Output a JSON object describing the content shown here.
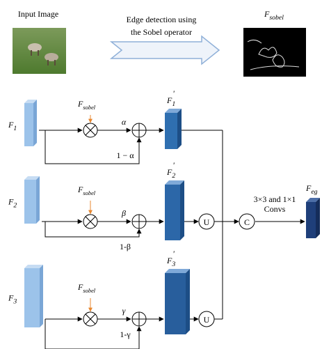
{
  "header": {
    "input_label": "Input Image",
    "arrow_label": [
      "Edge detection using",
      "the Sobel operator"
    ],
    "sobel_label": {
      "base": "F",
      "sub": "sobel"
    }
  },
  "branches": [
    {
      "input": {
        "base": "F",
        "sub": "1"
      },
      "sobel": {
        "base": "F",
        "sub": "sobel"
      },
      "weight": "α",
      "complement": "1 − α",
      "output": {
        "base": "F",
        "sub": "1",
        "sup": "'"
      }
    },
    {
      "input": {
        "base": "F",
        "sub": "2"
      },
      "sobel": {
        "base": "F",
        "sub": "sobel"
      },
      "weight": "β",
      "complement": "1-β",
      "output": {
        "base": "F",
        "sub": "2",
        "sup": "'"
      },
      "upsample": "U"
    },
    {
      "input": {
        "base": "F",
        "sub": "3"
      },
      "sobel": {
        "base": "F",
        "sub": "sobel"
      },
      "weight": "γ",
      "complement": "1-γ",
      "output": {
        "base": "F",
        "sub": "3",
        "sup": "'"
      },
      "upsample": "U"
    }
  ],
  "concat": "C",
  "conv_label": [
    "3×3 and 1×1",
    "Convs"
  ],
  "output": {
    "base": "F",
    "sub": "eg"
  }
}
